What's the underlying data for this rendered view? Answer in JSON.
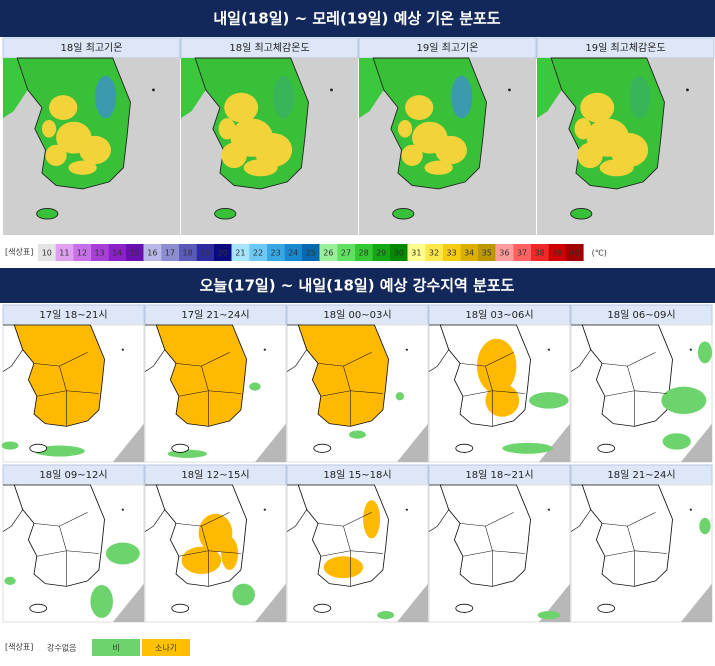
{
  "section1": {
    "title": "내일(18일) ~ 모레(19일) 예상 기온 분포도",
    "panels": [
      "18일 최고기온",
      "18일 최고체감온도",
      "19일 최고기온",
      "19일 최고체감온도"
    ],
    "legend": {
      "label": "[색상표]",
      "unit": "(℃)",
      "items": [
        {
          "label": 10,
          "color": "#e4e4e4"
        },
        {
          "label": 11,
          "color": "#e0a0f0"
        },
        {
          "label": 12,
          "color": "#c870e8"
        },
        {
          "label": 13,
          "color": "#a840d8"
        },
        {
          "label": 14,
          "color": "#8a20c8"
        },
        {
          "label": 15,
          "color": "#6a10b0"
        },
        {
          "label": 16,
          "color": "#b8b8e8"
        },
        {
          "label": 17,
          "color": "#8c8cd0"
        },
        {
          "label": 18,
          "color": "#5a5ab8"
        },
        {
          "label": 19,
          "color": "#2c2ca0"
        },
        {
          "label": 20,
          "color": "#0a0a80"
        },
        {
          "label": 21,
          "color": "#a8e4ff"
        },
        {
          "label": 22,
          "color": "#6cc8f4"
        },
        {
          "label": 23,
          "color": "#38a8e4"
        },
        {
          "label": 24,
          "color": "#1888d0"
        },
        {
          "label": 25,
          "color": "#0868b0"
        },
        {
          "label": 26,
          "color": "#98f098"
        },
        {
          "label": 27,
          "color": "#60e060"
        },
        {
          "label": 28,
          "color": "#34c834"
        },
        {
          "label": 29,
          "color": "#14a814"
        },
        {
          "label": 30,
          "color": "#008800"
        },
        {
          "label": 31,
          "color": "#ffff90"
        },
        {
          "label": 32,
          "color": "#ffe848"
        },
        {
          "label": 33,
          "color": "#f4cc10"
        },
        {
          "label": 34,
          "color": "#dcb000"
        },
        {
          "label": 35,
          "color": "#bc9800"
        },
        {
          "label": 36,
          "color": "#ff9c9c"
        },
        {
          "label": 37,
          "color": "#ff6060"
        },
        {
          "label": 38,
          "color": "#f02828"
        },
        {
          "label": 39,
          "color": "#d00000"
        },
        {
          "label": 40,
          "color": "#a00000"
        }
      ]
    }
  },
  "section2": {
    "title": "오늘(17일) ~ 내일(18일) 예상 강수지역 분포도",
    "panels": [
      "17일 18~21시",
      "17일 21~24시",
      "18일 00~03시",
      "18일 03~06시",
      "18일 06~09시",
      "18일 09~12시",
      "18일 12~15시",
      "18일 15~18시",
      "18일 18~21시",
      "18일 21~24시"
    ],
    "legend": {
      "label": "[색상표]",
      "items": [
        {
          "label": "강수없음",
          "color": "#ffffff"
        },
        {
          "label": "비",
          "color": "#6dd36d"
        },
        {
          "label": "소나기",
          "color": "#ffc000"
        }
      ]
    }
  }
}
